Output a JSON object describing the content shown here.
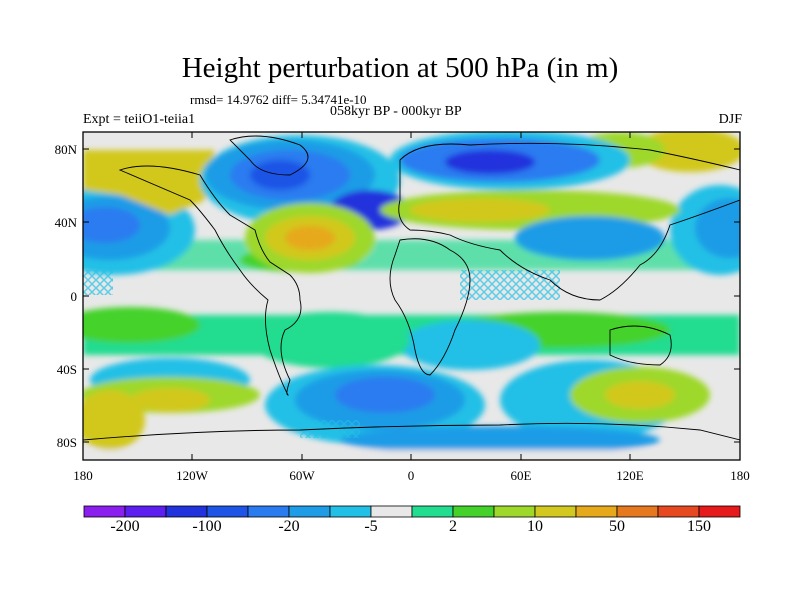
{
  "title": "Height perturbation at 500 hPa (in m)",
  "stats": "rmsd= 14.9762 diff= 5.34741e-10",
  "left_label": "Expt = teiiO1-teiia1",
  "center_label": "058kyr BP - 000kyr BP",
  "right_label": "DJF",
  "lat_ticks": [
    "80N",
    "40N",
    "0",
    "40S",
    "80S"
  ],
  "lon_ticks": [
    "180",
    "120W",
    "60W",
    "0",
    "60E",
    "120E",
    "180"
  ],
  "colorbar": {
    "colors": [
      "#8a1ff0",
      "#5d1ff0",
      "#2233dd",
      "#1f55e6",
      "#2a7bf0",
      "#1f9ce6",
      "#22c0e6",
      "#e8e8e8",
      "#22dc90",
      "#44d22a",
      "#9ed82a",
      "#d2c81f",
      "#e6a91c",
      "#e6781f",
      "#e6481f",
      "#e61a1a"
    ],
    "labels": [
      "-200",
      "-100",
      "-20",
      "-5",
      "2",
      "10",
      "50",
      "150"
    ]
  }
}
